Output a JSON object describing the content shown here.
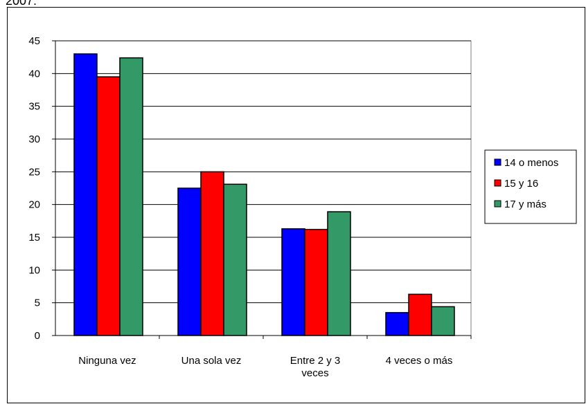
{
  "top_text": "2007:",
  "chart_data": {
    "type": "bar",
    "categories": [
      [
        "Ninguna vez"
      ],
      [
        "Una sola vez"
      ],
      [
        "Entre 2 y 3",
        "veces"
      ],
      [
        "4 veces o más"
      ]
    ],
    "series": [
      {
        "name": "14 o menos",
        "color": "#0000ff",
        "values": [
          43.0,
          22.5,
          16.3,
          3.5
        ]
      },
      {
        "name": "15 y 16",
        "color": "#ff0000",
        "values": [
          39.5,
          25.0,
          16.2,
          6.3
        ]
      },
      {
        "name": "17 y más",
        "color": "#339966",
        "values": [
          42.4,
          23.1,
          18.9,
          4.4
        ]
      }
    ],
    "ylim": [
      0,
      45
    ],
    "yticks": [
      0,
      5,
      10,
      15,
      20,
      25,
      30,
      35,
      40,
      45
    ],
    "grid": true,
    "legend": "right"
  }
}
